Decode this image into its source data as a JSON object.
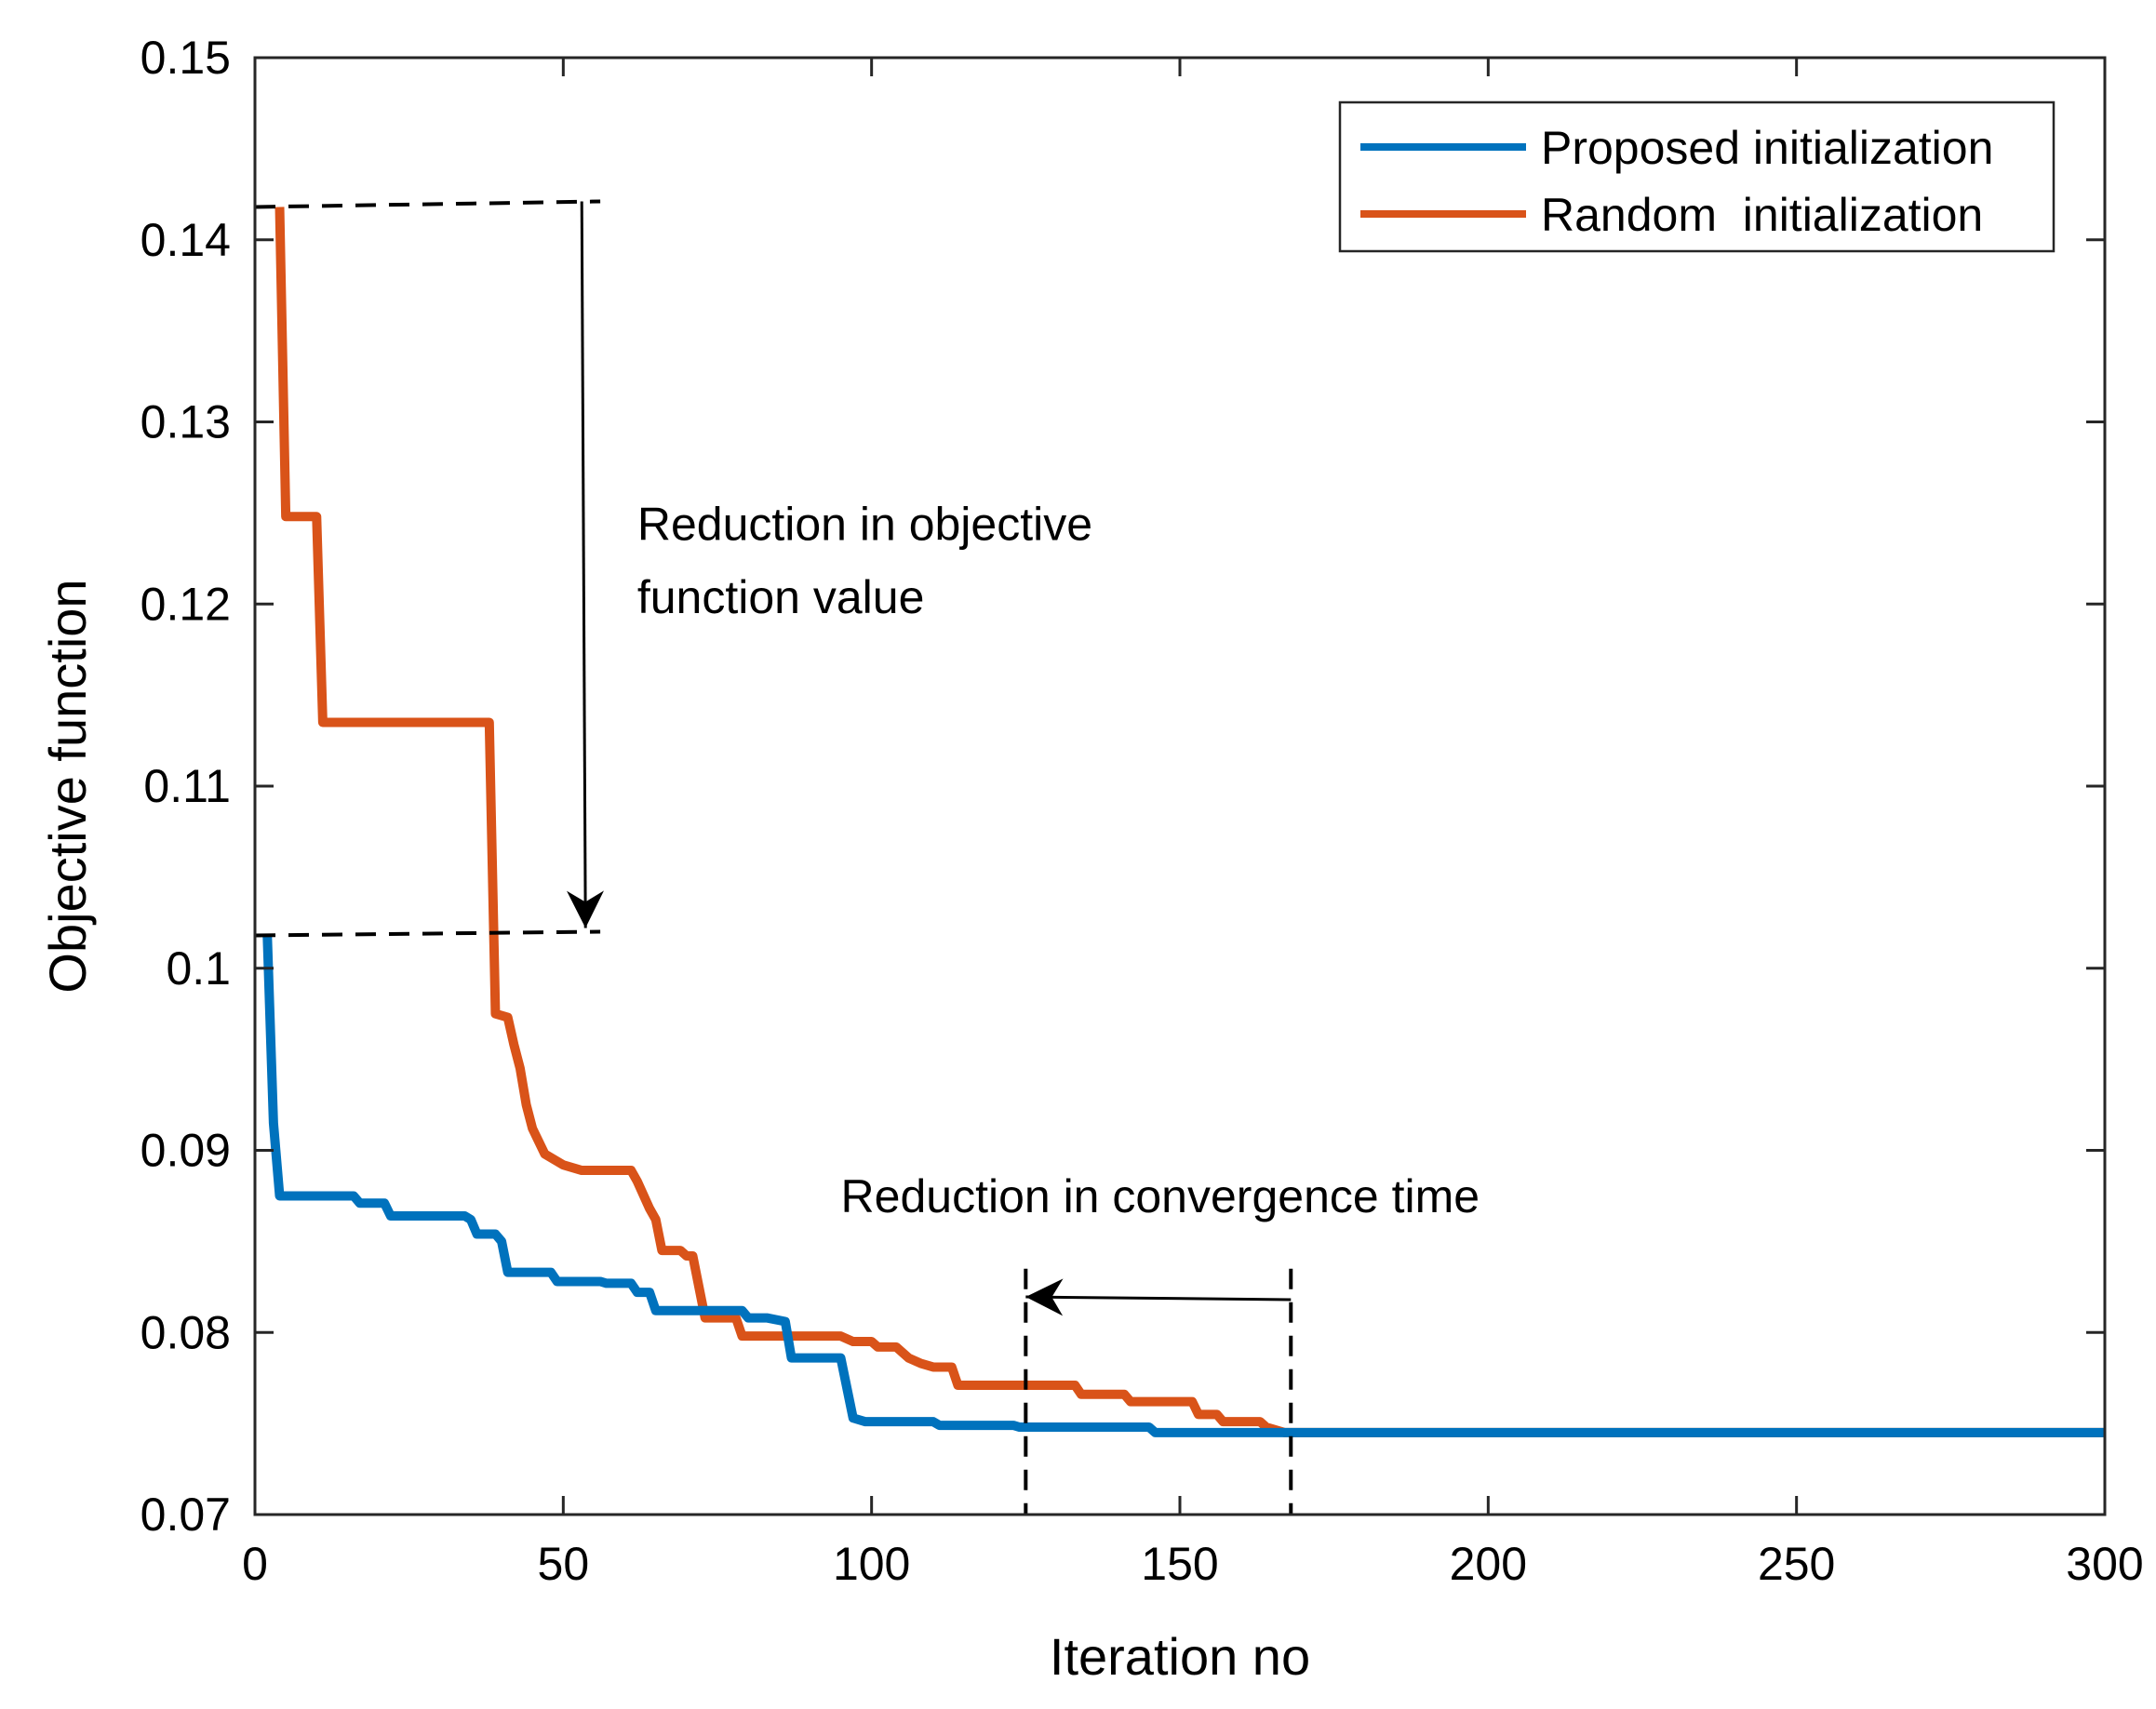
{
  "chart_data": {
    "type": "line",
    "title": "",
    "xlabel": "Iteration no",
    "ylabel": "Objective function",
    "xlim": [
      0,
      300
    ],
    "ylim": [
      0.07,
      0.15
    ],
    "xticks": [
      0,
      50,
      100,
      150,
      200,
      250,
      300
    ],
    "xtick_labels": [
      "0",
      "50",
      "100",
      "150",
      "200",
      "250",
      "300"
    ],
    "yticks": [
      0.07,
      0.08,
      0.09,
      0.1,
      0.11,
      0.12,
      0.13,
      0.14,
      0.15
    ],
    "ytick_labels": [
      "0.07",
      "0.08",
      "0.09",
      "0.1",
      "0.11",
      "0.12",
      "0.13",
      "0.14",
      "0.15"
    ],
    "grid": false,
    "legend_position": "top-right",
    "series": [
      {
        "name": "Proposed initialization",
        "color": "#0072BD",
        "points": [
          [
            2,
            0.1018
          ],
          [
            3,
            0.0915
          ],
          [
            4,
            0.0875
          ],
          [
            16,
            0.0875
          ],
          [
            17,
            0.0871
          ],
          [
            21,
            0.0871
          ],
          [
            22,
            0.0864
          ],
          [
            34,
            0.0864
          ],
          [
            35,
            0.0862
          ],
          [
            36,
            0.0854
          ],
          [
            39,
            0.0854
          ],
          [
            40,
            0.085
          ],
          [
            41,
            0.0833
          ],
          [
            48,
            0.0833
          ],
          [
            49,
            0.0828
          ],
          [
            56,
            0.0828
          ],
          [
            57,
            0.0827
          ],
          [
            61,
            0.0827
          ],
          [
            62,
            0.0822
          ],
          [
            64,
            0.0822
          ],
          [
            65,
            0.0812
          ],
          [
            79,
            0.0812
          ],
          [
            80,
            0.0808
          ],
          [
            83,
            0.0808
          ],
          [
            86,
            0.0806
          ],
          [
            87,
            0.0786
          ],
          [
            95,
            0.0786
          ],
          [
            97,
            0.0753
          ],
          [
            99,
            0.0751
          ],
          [
            110,
            0.0751
          ],
          [
            111,
            0.0749
          ],
          [
            123,
            0.0749
          ],
          [
            124,
            0.0748
          ],
          [
            145,
            0.0748
          ],
          [
            146,
            0.0745
          ],
          [
            164,
            0.0745
          ],
          [
            165,
            0.0745
          ],
          [
            300,
            0.0745
          ]
        ]
      },
      {
        "name": "Random  initialization",
        "color": "#D95319",
        "points": [
          [
            4,
            0.1418
          ],
          [
            5,
            0.1248
          ],
          [
            10,
            0.1248
          ],
          [
            11,
            0.1135
          ],
          [
            38,
            0.1135
          ],
          [
            39,
            0.0975
          ],
          [
            41,
            0.0973
          ],
          [
            42,
            0.0958
          ],
          [
            43,
            0.0945
          ],
          [
            44,
            0.0925
          ],
          [
            45,
            0.0912
          ],
          [
            47,
            0.0898
          ],
          [
            50,
            0.0892
          ],
          [
            53,
            0.0889
          ],
          [
            61,
            0.0889
          ],
          [
            62,
            0.0883
          ],
          [
            64,
            0.0868
          ],
          [
            65,
            0.0862
          ],
          [
            66,
            0.0845
          ],
          [
            69,
            0.0845
          ],
          [
            70,
            0.0842
          ],
          [
            71,
            0.0842
          ],
          [
            73,
            0.0808
          ],
          [
            78,
            0.0808
          ],
          [
            79,
            0.0798
          ],
          [
            95,
            0.0798
          ],
          [
            97,
            0.0795
          ],
          [
            100,
            0.0795
          ],
          [
            101,
            0.0792
          ],
          [
            104,
            0.0792
          ],
          [
            106,
            0.0786
          ],
          [
            108,
            0.0783
          ],
          [
            110,
            0.0781
          ],
          [
            113,
            0.0781
          ],
          [
            114,
            0.0771
          ],
          [
            133,
            0.0771
          ],
          [
            134,
            0.0766
          ],
          [
            141,
            0.0766
          ],
          [
            142,
            0.0762
          ],
          [
            152,
            0.0762
          ],
          [
            153,
            0.0755
          ],
          [
            156,
            0.0755
          ],
          [
            157,
            0.0751
          ],
          [
            163,
            0.0751
          ],
          [
            164,
            0.0748
          ],
          [
            167,
            0.0745
          ],
          [
            300,
            0.0745
          ]
        ]
      }
    ],
    "annotations": {
      "objective_reduction": {
        "line1": "Reduction in objective",
        "line2": "function value",
        "upper_level": 0.1418,
        "lower_level": 0.1018,
        "arrow_x": 53,
        "dashed_x_range": [
          0,
          56
        ],
        "text_anchor": [
          62,
          0.1235
        ],
        "text_line2_anchor": [
          62,
          0.1195
        ]
      },
      "convergence_reduction": {
        "label": "Reduction in convergence time",
        "from_x": 168,
        "to_x": 125,
        "arrow_y": 0.0818,
        "dashed_y_range": [
          0.07,
          0.0835
        ],
        "text_anchor": [
          95,
          0.0866
        ]
      }
    }
  }
}
